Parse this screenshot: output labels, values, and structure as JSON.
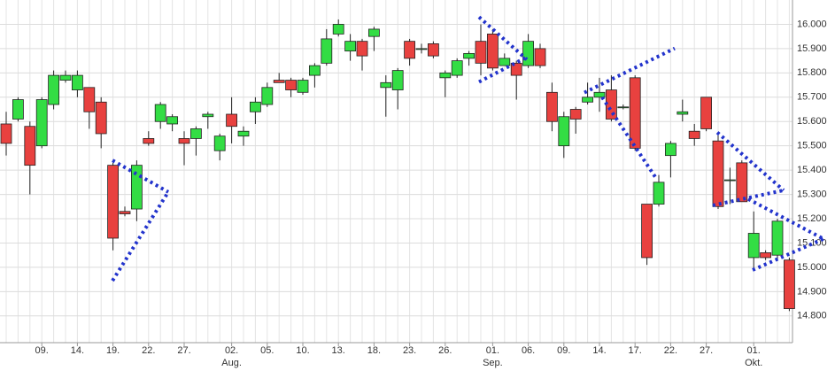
{
  "chart_data": {
    "type": "candlestick",
    "categories": [
      null,
      null,
      null,
      "09.",
      null,
      null,
      "14.",
      null,
      null,
      "19.",
      null,
      null,
      "22.",
      null,
      null,
      "27.",
      null,
      null,
      null,
      "02.",
      null,
      null,
      "05.",
      null,
      null,
      "10.",
      null,
      null,
      "13.",
      null,
      null,
      "18.",
      null,
      null,
      "23.",
      null,
      null,
      "26.",
      null,
      null,
      null,
      "01.",
      null,
      null,
      "06.",
      null,
      null,
      "09.",
      null,
      null,
      "14.",
      null,
      null,
      "17.",
      null,
      null,
      "22.",
      null,
      null,
      "27.",
      null,
      null,
      null,
      "01.",
      null,
      null,
      null
    ],
    "months": [
      null,
      null,
      null,
      null,
      null,
      null,
      null,
      null,
      null,
      null,
      null,
      null,
      null,
      null,
      null,
      null,
      null,
      null,
      null,
      "Aug.",
      null,
      null,
      null,
      null,
      null,
      null,
      null,
      null,
      null,
      null,
      null,
      null,
      null,
      null,
      null,
      null,
      null,
      null,
      null,
      null,
      null,
      "Sep.",
      null,
      null,
      null,
      null,
      null,
      null,
      null,
      null,
      null,
      null,
      null,
      null,
      null,
      null,
      null,
      null,
      null,
      null,
      null,
      null,
      null,
      "Okt.",
      null,
      null,
      null
    ],
    "open": [
      15590,
      15610,
      15580,
      15500,
      15670,
      15770,
      15730,
      15740,
      15680,
      15420,
      15230,
      15240,
      15530,
      15600,
      15590,
      15530,
      15530,
      15620,
      15480,
      15630,
      15540,
      15640,
      15670,
      15770,
      15770,
      15720,
      15790,
      15840,
      15960,
      15890,
      15930,
      15950,
      15740,
      15730,
      15930,
      15900,
      15920,
      15780,
      15790,
      15860,
      15930,
      15960,
      15830,
      15840,
      15830,
      15900,
      15720,
      15500,
      15650,
      15680,
      15700,
      15730,
      15660,
      15780,
      15260,
      15260,
      15460,
      15630,
      15560,
      15700,
      15520,
      15360,
      15430,
      15040,
      15060,
      15050,
      15030
    ],
    "high": [
      15640,
      15700,
      15600,
      15700,
      15810,
      15810,
      15810,
      15740,
      15700,
      15430,
      15250,
      15440,
      15560,
      15680,
      15630,
      15560,
      15580,
      15640,
      15550,
      15700,
      15580,
      15700,
      15760,
      15800,
      15780,
      15780,
      15840,
      15980,
      16020,
      15960,
      15940,
      15990,
      15790,
      15820,
      15940,
      15920,
      15930,
      15810,
      15860,
      15890,
      16000,
      15980,
      15880,
      15850,
      15960,
      15920,
      15760,
      15640,
      15660,
      15760,
      15780,
      15790,
      15670,
      15790,
      15260,
      15380,
      15520,
      15690,
      15590,
      15700,
      15550,
      15410,
      15440,
      15230,
      15070,
      15200,
      15040
    ],
    "low": [
      15460,
      15600,
      15300,
      15490,
      15650,
      15760,
      15700,
      15570,
      15490,
      15070,
      15210,
      15190,
      15500,
      15570,
      15560,
      15420,
      15460,
      15570,
      15440,
      15510,
      15500,
      15590,
      15660,
      15760,
      15700,
      15710,
      15740,
      15830,
      15950,
      15850,
      15810,
      15890,
      15620,
      15650,
      15830,
      15880,
      15860,
      15700,
      15780,
      15830,
      15790,
      15810,
      15830,
      15690,
      15820,
      15820,
      15560,
      15450,
      15550,
      15670,
      15640,
      15600,
      15650,
      15480,
      15010,
      15250,
      15370,
      15600,
      15500,
      15560,
      15240,
      15260,
      15270,
      14990,
      15030,
      15030,
      14820
    ],
    "close": [
      15510,
      15690,
      15420,
      15690,
      15790,
      15790,
      15790,
      15640,
      15550,
      15120,
      15220,
      15420,
      15510,
      15670,
      15620,
      15510,
      15570,
      15630,
      15540,
      15580,
      15560,
      15680,
      15740,
      15760,
      15730,
      15770,
      15830,
      15940,
      16000,
      15930,
      15870,
      15980,
      15760,
      15810,
      15860,
      15900,
      15870,
      15800,
      15850,
      15880,
      15840,
      15820,
      15860,
      15790,
      15930,
      15830,
      15600,
      15620,
      15610,
      15700,
      15720,
      15610,
      15660,
      15490,
      15040,
      15350,
      15510,
      15640,
      15530,
      15570,
      15250,
      15360,
      15270,
      15140,
      15040,
      15190,
      14830
    ],
    "up_color": "#33dd44",
    "down_color": "#e8413f",
    "trendlines": [
      [
        [
          8.96,
          15440
        ],
        [
          13.66,
          15310
        ]
      ],
      [
        [
          8.96,
          14945
        ],
        [
          13.66,
          15310
        ]
      ],
      [
        [
          39.85,
          16030
        ],
        [
          43.88,
          15855
        ]
      ],
      [
        [
          39.85,
          15763
        ],
        [
          43.88,
          15865
        ]
      ],
      [
        [
          48.73,
          15719
        ],
        [
          56.34,
          15901
        ]
      ],
      [
        [
          50.22,
          15700
        ],
        [
          54.7,
          15372
        ]
      ],
      [
        [
          59.93,
          15555
        ],
        [
          65.52,
          15317
        ]
      ],
      [
        [
          59.55,
          15255
        ],
        [
          65.52,
          15317
        ]
      ],
      [
        [
          62.54,
          15281
        ],
        [
          68.88,
          15117
        ]
      ],
      [
        [
          62.91,
          14989
        ],
        [
          68.88,
          15117
        ]
      ]
    ],
    "trend_color": "#2233cc",
    "ylim": [
      14690,
      16100
    ],
    "yticks": [
      {
        "value": 14800,
        "label": "14.800"
      },
      {
        "value": 14900,
        "label": "14.900"
      },
      {
        "value": 15000,
        "label": "15.000"
      },
      {
        "value": 15100,
        "label": "15.100"
      },
      {
        "value": 15200,
        "label": "15.200"
      },
      {
        "value": 15300,
        "label": "15.300"
      },
      {
        "value": 15400,
        "label": "15.400"
      },
      {
        "value": 15500,
        "label": "15.500"
      },
      {
        "value": 15600,
        "label": "15.600"
      },
      {
        "value": 15700,
        "label": "15.700"
      },
      {
        "value": 15800,
        "label": "15.800"
      },
      {
        "value": 15900,
        "label": "15.900"
      },
      {
        "value": 16000,
        "label": "16.000"
      }
    ],
    "grid": true
  }
}
